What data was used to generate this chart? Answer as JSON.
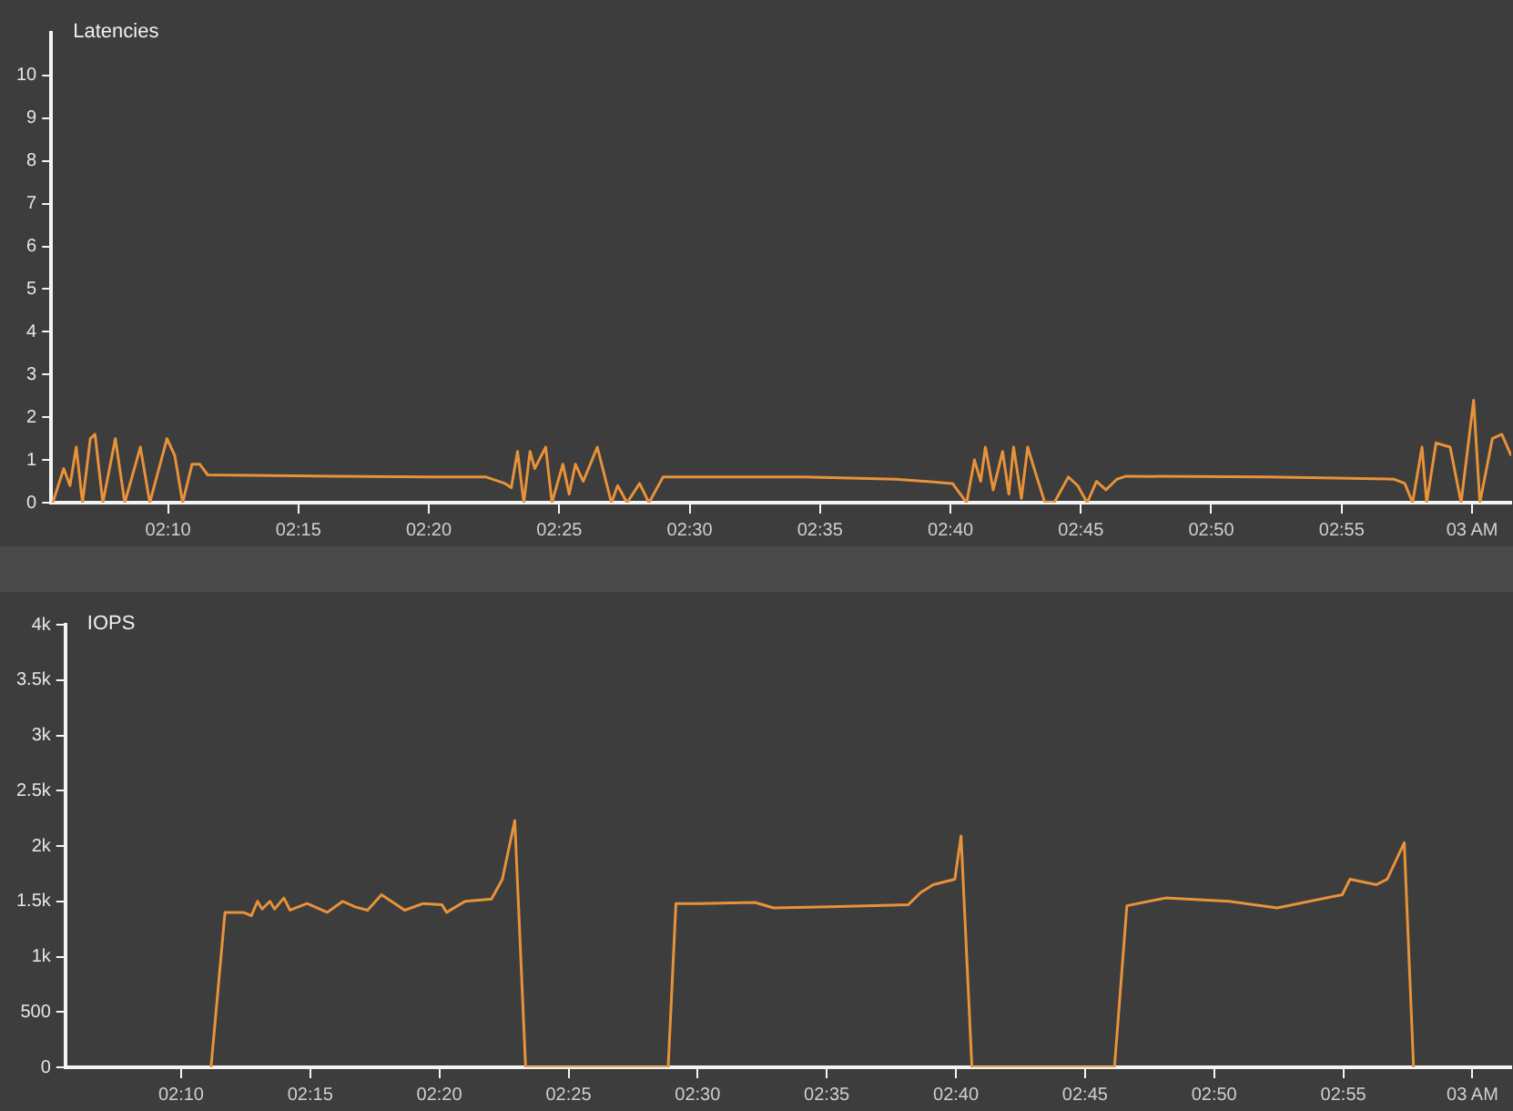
{
  "chart_data": [
    {
      "type": "line",
      "title": "Latencies",
      "marker": "none",
      "grid": false,
      "x": [
        2.093,
        2.1,
        2.104,
        2.108,
        2.112,
        2.117,
        2.12,
        2.125,
        2.133,
        2.139,
        2.149,
        2.155,
        2.166,
        2.171,
        2.176,
        2.182,
        2.187,
        2.192,
        2.275,
        2.335,
        2.37,
        2.382,
        2.386,
        2.39,
        2.394,
        2.398,
        2.401,
        2.408,
        2.412,
        2.419,
        2.423,
        2.427,
        2.432,
        2.441,
        2.45,
        2.454,
        2.46,
        2.468,
        2.474,
        2.483,
        2.573,
        2.632,
        2.668,
        2.677,
        2.682,
        2.686,
        2.689,
        2.694,
        2.7,
        2.704,
        2.707,
        2.712,
        2.716,
        2.721,
        2.727,
        2.733,
        2.742,
        2.748,
        2.754,
        2.76,
        2.766,
        2.773,
        2.779,
        2.87,
        2.95,
        2.957,
        2.962,
        2.968,
        2.971,
        2.977,
        2.986,
        2.993,
        3.001,
        3.005,
        3.013,
        3.019,
        3.025
      ],
      "series": [
        {
          "color": "#e8923a",
          "values": [
            0,
            0.8,
            0.4,
            1.3,
            0,
            1.5,
            1.6,
            0,
            1.5,
            0,
            1.3,
            0,
            1.5,
            1.1,
            0,
            0.9,
            0.9,
            0.65,
            0.62,
            0.6,
            0.6,
            0.45,
            0.35,
            1.2,
            0,
            1.2,
            0.8,
            1.3,
            0,
            0.9,
            0.2,
            0.9,
            0.5,
            1.3,
            0,
            0.4,
            0,
            0.45,
            0,
            0.6,
            0.6,
            0.55,
            0.45,
            0,
            1.0,
            0.5,
            1.3,
            0.3,
            1.2,
            0.2,
            1.3,
            0.1,
            1.3,
            0.7,
            0,
            0,
            0.6,
            0.4,
            0,
            0.5,
            0.3,
            0.55,
            0.62,
            0.6,
            0.55,
            0.45,
            0,
            1.3,
            0,
            1.4,
            1.3,
            0,
            2.4,
            0,
            1.5,
            1.6,
            1.1
          ]
        }
      ],
      "xlim": [
        2.092,
        3.025
      ],
      "ylim": [
        0,
        11
      ],
      "xticks": [
        {
          "value": 2.1667,
          "label": "02:10"
        },
        {
          "value": 2.25,
          "label": "02:15"
        },
        {
          "value": 2.3333,
          "label": "02:20"
        },
        {
          "value": 2.4167,
          "label": "02:25"
        },
        {
          "value": 2.5,
          "label": "02:30"
        },
        {
          "value": 2.5833,
          "label": "02:35"
        },
        {
          "value": 2.6667,
          "label": "02:40"
        },
        {
          "value": 2.75,
          "label": "02:45"
        },
        {
          "value": 2.8333,
          "label": "02:50"
        },
        {
          "value": 2.9167,
          "label": "02:55"
        },
        {
          "value": 3,
          "label": "03 AM"
        }
      ],
      "yticks": [
        0,
        1,
        2,
        3,
        4,
        5,
        6,
        7,
        8,
        9,
        10
      ]
    },
    {
      "type": "line",
      "title": "IOPS",
      "marker": "none",
      "grid": false,
      "x": [
        2.186,
        2.195,
        2.207,
        2.212,
        2.216,
        2.219,
        2.224,
        2.227,
        2.233,
        2.237,
        2.248,
        2.261,
        2.271,
        2.279,
        2.287,
        2.296,
        2.311,
        2.323,
        2.335,
        2.338,
        2.35,
        2.367,
        2.374,
        2.382,
        2.389,
        2.481,
        2.486,
        2.501,
        2.537,
        2.549,
        2.585,
        2.636,
        2.644,
        2.652,
        2.666,
        2.67,
        2.677,
        2.769,
        2.777,
        2.791,
        2.802,
        2.843,
        2.874,
        2.902,
        2.916,
        2.921,
        2.938,
        2.945,
        2.956,
        2.962
      ],
      "series": [
        {
          "color": "#e8923a",
          "values": [
            0,
            1400,
            1400,
            1370,
            1500,
            1430,
            1500,
            1430,
            1530,
            1420,
            1480,
            1400,
            1500,
            1450,
            1420,
            1560,
            1420,
            1480,
            1470,
            1400,
            1500,
            1520,
            1700,
            2230,
            0,
            0,
            1480,
            1480,
            1490,
            1440,
            1450,
            1470,
            1580,
            1650,
            1700,
            2090,
            0,
            0,
            1460,
            1500,
            1530,
            1500,
            1440,
            1520,
            1560,
            1700,
            1650,
            1700,
            2030,
            0
          ]
        }
      ],
      "xlim": [
        2.092,
        3.025
      ],
      "ylim": [
        0,
        4000
      ],
      "xticks": [
        {
          "value": 2.1667,
          "label": "02:10"
        },
        {
          "value": 2.25,
          "label": "02:15"
        },
        {
          "value": 2.3333,
          "label": "02:20"
        },
        {
          "value": 2.4167,
          "label": "02:25"
        },
        {
          "value": 2.5,
          "label": "02:30"
        },
        {
          "value": 2.5833,
          "label": "02:35"
        },
        {
          "value": 2.6667,
          "label": "02:40"
        },
        {
          "value": 2.75,
          "label": "02:45"
        },
        {
          "value": 2.8333,
          "label": "02:50"
        },
        {
          "value": 2.9167,
          "label": "02:55"
        },
        {
          "value": 3,
          "label": "03 AM"
        }
      ],
      "yticks": [
        0,
        500,
        {
          "value": 1000,
          "label": "1k"
        },
        {
          "value": 1500,
          "label": "1.5k"
        },
        {
          "value": 2000,
          "label": "2k"
        },
        {
          "value": 2500,
          "label": "2.5k"
        },
        {
          "value": 3000,
          "label": "3k"
        },
        {
          "value": 3500,
          "label": "3.5k"
        },
        {
          "value": 4000,
          "label": "4k"
        }
      ]
    }
  ]
}
